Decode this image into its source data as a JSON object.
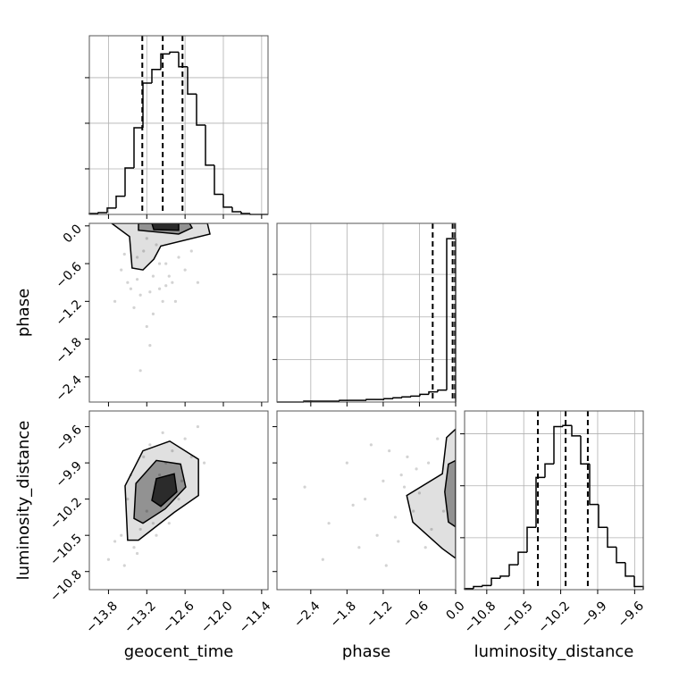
{
  "chart_data": [
    {
      "type": "histogram",
      "bins": [
        -14.1,
        -13.96,
        -13.82,
        -13.68,
        -13.54,
        -13.4,
        -13.26,
        -13.12,
        -12.98,
        -12.84,
        -12.7,
        -12.56,
        -12.42,
        -12.28,
        -12.14,
        -12.0,
        -11.86,
        -11.72,
        -11.58,
        -11.44,
        -11.3
      ],
      "values": [
        1,
        2,
        7,
        20,
        51,
        95,
        144,
        159,
        176,
        178,
        162,
        132,
        98,
        54,
        22,
        8,
        3,
        1,
        0,
        0
      ],
      "quantiles": [
        -13.27,
        -12.95,
        -12.64
      ],
      "xlim": [
        -14.1,
        -11.3
      ],
      "xticks": [
        -13.8,
        -13.2,
        -12.6,
        -12.0,
        -11.4
      ],
      "ylim": [
        0,
        196
      ],
      "yticks": [
        50,
        100,
        150
      ],
      "grid": true,
      "color": "#000000"
    },
    {
      "type": "scatter",
      "x": [
        -13.5,
        -13.3,
        -13.1,
        -12.9,
        -12.7,
        -13.4,
        -13.2,
        -13.0,
        -12.8,
        -13.6,
        -13.35,
        -13.15,
        -12.95,
        -13.25,
        -13.05,
        -12.85,
        -13.45,
        -13.3,
        -13.1,
        -12.9,
        -12.6,
        -13.7,
        -13.2,
        -13.0,
        -12.5,
        -13.35,
        -13.15,
        -12.75,
        -13.55,
        -12.4
      ],
      "y": [
        -0.9,
        -1.1,
        -0.8,
        -0.6,
        -0.5,
        -1.3,
        -1.6,
        -1.0,
        -0.9,
        -0.7,
        -0.5,
        -1.9,
        -1.2,
        -0.4,
        -0.3,
        -0.8,
        -1.0,
        -2.3,
        -1.4,
        -0.95,
        -0.7,
        -1.2,
        -0.2,
        -0.6,
        -0.4,
        -0.85,
        -1.05,
        -1.2,
        -0.45,
        -0.9
      ],
      "contours": [
        {
          "x": [
            -13.75,
            -13.47,
            -13.43,
            -13.26,
            -13.09,
            -12.98,
            -12.21,
            -12.25
          ],
          "y": [
            0.04,
            -0.17,
            -0.67,
            -0.7,
            -0.53,
            -0.32,
            -0.13,
            0.04
          ]
        },
        {
          "x": [
            -13.33,
            -13.33,
            -12.7,
            -12.49,
            -12.53
          ],
          "y": [
            0.04,
            -0.07,
            -0.13,
            -0.03,
            0.04
          ]
        },
        {
          "x": [
            -13.12,
            -13.09,
            -12.7,
            -12.7
          ],
          "y": [
            0.04,
            -0.06,
            -0.07,
            0.04
          ]
        }
      ],
      "xlim": [
        -14.1,
        -11.3
      ],
      "xticks": [
        -13.8,
        -13.2,
        -12.6,
        -12.0,
        -11.4
      ],
      "ylim": [
        -2.8,
        0.04
      ],
      "yticks": [
        {
          "value": 0,
          "label": "0.0"
        },
        {
          "value": -0.6,
          "label": "−0.6"
        },
        {
          "value": -1.2,
          "label": "−1.2"
        },
        {
          "value": -1.8,
          "label": "−1.8"
        },
        {
          "value": -2.4,
          "label": "−2.4"
        }
      ],
      "ylabel": "phase",
      "color": "#808080"
    },
    {
      "type": "histogram",
      "bins": [
        -2.96,
        -2.812,
        -2.664,
        -2.516,
        -2.368,
        -2.22,
        -2.072,
        -1.924,
        -1.776,
        -1.628,
        -1.48,
        -1.332,
        -1.184,
        -1.036,
        -0.888,
        -0.74,
        -0.592,
        -0.444,
        -0.296,
        -0.148,
        0
      ],
      "values": [
        0,
        0,
        0,
        1,
        1,
        1,
        1,
        2,
        2,
        2,
        3,
        3,
        4,
        5,
        6,
        7,
        9,
        12,
        14,
        192
      ],
      "quantiles": [
        -0.38,
        -0.05,
        -0.01
      ],
      "xlim": [
        -2.96,
        0
      ],
      "xticks": [
        -2.4,
        -1.8,
        -1.2,
        -0.6,
        0
      ],
      "ylim": [
        0,
        210
      ],
      "yticks": [
        50,
        100,
        150
      ],
      "grid": true,
      "color": "#000000"
    },
    {
      "type": "scatter",
      "x": [
        -13.8,
        -13.6,
        -13.4,
        -13.2,
        -13.0,
        -12.8,
        -12.6,
        -12.4,
        -13.5,
        -13.3,
        -13.1,
        -12.9,
        -12.7,
        -12.5,
        -13.7,
        -13.45,
        -13.25,
        -13.05,
        -12.85,
        -12.65,
        -13.55,
        -13.15,
        -12.95,
        -12.3,
        -13.35
      ],
      "y": [
        -10.7,
        -10.5,
        -10.6,
        -10.3,
        -10.0,
        -9.8,
        -9.7,
        -9.6,
        -10.2,
        -10.45,
        -10.4,
        -9.9,
        -10.2,
        -9.85,
        -10.55,
        -10.0,
        -9.85,
        -10.5,
        -10.4,
        -10.05,
        -10.75,
        -9.75,
        -9.65,
        -9.9,
        -10.65
      ],
      "contours": [
        {
          "x": [
            -13.5,
            -13.54,
            -13.26,
            -12.84,
            -12.39,
            -12.39,
            -12.77,
            -13.33
          ],
          "y": [
            -10.54,
            -10.09,
            -9.8,
            -9.72,
            -9.87,
            -10.17,
            -10.31,
            -10.54
          ]
        },
        {
          "x": [
            -13.4,
            -13.37,
            -13.05,
            -12.67,
            -12.59,
            -12.91,
            -13.26
          ],
          "y": [
            -10.36,
            -10.07,
            -9.88,
            -9.91,
            -10.1,
            -10.28,
            -10.4
          ]
        },
        {
          "x": [
            -13.12,
            -13.05,
            -12.77,
            -12.73,
            -12.98
          ],
          "y": [
            -10.21,
            -10.03,
            -9.99,
            -10.14,
            -10.26
          ]
        }
      ],
      "xlim": [
        -14.1,
        -11.3
      ],
      "xticks": [
        {
          "value": -13.8,
          "label": "−13.8"
        },
        {
          "value": -13.2,
          "label": "−13.2"
        },
        {
          "value": -12.6,
          "label": "−12.6"
        },
        {
          "value": -12.0,
          "label": "−12.0"
        },
        {
          "value": -11.4,
          "label": "−11.4"
        }
      ],
      "xlabel": "geocent_time",
      "ylim": [
        -10.95,
        -9.47
      ],
      "yticks": [
        {
          "value": -9.6,
          "label": "−9.6"
        },
        {
          "value": -9.9,
          "label": "−9.9"
        },
        {
          "value": -10.2,
          "label": "−10.2"
        },
        {
          "value": -10.5,
          "label": "−10.5"
        },
        {
          "value": -10.8,
          "label": "−10.8"
        }
      ],
      "ylabel": "luminosity_distance",
      "color": "#808080"
    },
    {
      "type": "scatter",
      "x": [
        -2.5,
        -2.1,
        -1.8,
        -1.5,
        -1.3,
        -1.1,
        -0.9,
        -0.7,
        -0.5,
        -0.3,
        -1.6,
        -1.2,
        -1.0,
        -0.8,
        -0.6,
        -0.4,
        -2.2,
        -1.4,
        -0.95,
        -0.65,
        -1.7,
        -1.15,
        -0.85,
        -0.45,
        -0.2
      ],
      "y": [
        -10.1,
        -10.4,
        -9.9,
        -10.2,
        -10.5,
        -9.8,
        -10.0,
        -10.3,
        -10.6,
        -9.7,
        -10.6,
        -10.05,
        -10.35,
        -9.85,
        -10.15,
        -10.45,
        -10.7,
        -9.75,
        -10.55,
        -9.95,
        -10.25,
        -10.75,
        -10.1,
        -9.9,
        -10.3
      ],
      "contours": [
        {
          "x": [
            0,
            -0.15,
            -0.22,
            -0.81,
            -0.71,
            -0.22,
            0
          ],
          "y": [
            -9.62,
            -9.69,
            -9.99,
            -10.17,
            -10.39,
            -10.61,
            -10.69
          ]
        },
        {
          "x": [
            0,
            -0.12,
            -0.18,
            -0.12,
            0
          ],
          "y": [
            -9.88,
            -9.91,
            -10.14,
            -10.39,
            -10.43
          ]
        }
      ],
      "xlim": [
        -2.96,
        0
      ],
      "xticks": [
        {
          "value": -2.4,
          "label": "−2.4"
        },
        {
          "value": -1.8,
          "label": "−1.8"
        },
        {
          "value": -1.2,
          "label": "−1.2"
        },
        {
          "value": -0.6,
          "label": "−0.6"
        },
        {
          "value": 0,
          "label": "0.0"
        }
      ],
      "xlabel": "phase",
      "ylim": [
        -10.95,
        -9.47
      ],
      "yticks": [
        -9.6,
        -9.9,
        -10.2,
        -10.5,
        -10.8
      ],
      "color": "#808080"
    },
    {
      "type": "histogram",
      "bins": [
        -10.98,
        -10.9075,
        -10.835,
        -10.7625,
        -10.69,
        -10.6175,
        -10.545,
        -10.4725,
        -10.4,
        -10.3275,
        -10.255,
        -10.1825,
        -10.11,
        -10.0375,
        -9.965,
        -9.8925,
        -9.82,
        -9.7475,
        -9.675,
        -9.6025,
        -9.53
      ],
      "values": [
        1,
        3,
        4,
        11,
        13,
        24,
        36,
        60,
        108,
        121,
        157,
        158,
        148,
        121,
        82,
        60,
        41,
        26,
        13,
        3
      ],
      "quantiles": [
        -10.385,
        -10.16,
        -9.98
      ],
      "xlim": [
        -10.98,
        -9.53
      ],
      "xticks": [
        {
          "value": -10.8,
          "label": "−10.8"
        },
        {
          "value": -10.5,
          "label": "−10.5"
        },
        {
          "value": -10.2,
          "label": "−10.2"
        },
        {
          "value": -9.9,
          "label": "−9.9"
        },
        {
          "value": -9.6,
          "label": "−9.6"
        }
      ],
      "xlabel": "luminosity_distance",
      "ylim": [
        0,
        172
      ],
      "yticks": [
        50,
        100,
        150
      ],
      "grid": true,
      "color": "#000000"
    }
  ]
}
